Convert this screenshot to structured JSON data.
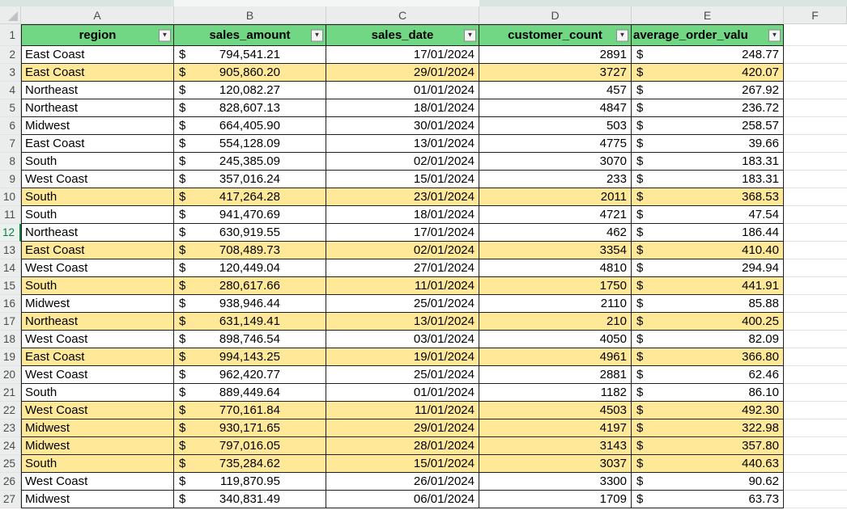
{
  "sheet": {
    "column_letters": [
      "A",
      "B",
      "C",
      "D",
      "E",
      "F"
    ],
    "header_row_number": "1",
    "headers": {
      "region": "region",
      "sales_amount": "sales_amount",
      "sales_date": "sales_date",
      "customer_count": "customer_count",
      "average_order_value": "average_order_valu"
    },
    "filter_icon": "▼",
    "currency_symbol": "$",
    "selected_row": "12",
    "colors": {
      "header_fill": "#71d784",
      "highlight_fill": "#ffe999",
      "selected_accent": "#107c41"
    },
    "rows": [
      {
        "n": "2",
        "region": "East Coast",
        "sales_amount": "794,541.21",
        "sales_date": "17/01/2024",
        "customer_count": "2891",
        "average_order_value": "248.77",
        "highlight": false
      },
      {
        "n": "3",
        "region": "East Coast",
        "sales_amount": "905,860.20",
        "sales_date": "29/01/2024",
        "customer_count": "3727",
        "average_order_value": "420.07",
        "highlight": true
      },
      {
        "n": "4",
        "region": "Northeast",
        "sales_amount": "120,082.27",
        "sales_date": "01/01/2024",
        "customer_count": "457",
        "average_order_value": "267.92",
        "highlight": false
      },
      {
        "n": "5",
        "region": "Northeast",
        "sales_amount": "828,607.13",
        "sales_date": "18/01/2024",
        "customer_count": "4847",
        "average_order_value": "236.72",
        "highlight": false
      },
      {
        "n": "6",
        "region": "Midwest",
        "sales_amount": "664,405.90",
        "sales_date": "30/01/2024",
        "customer_count": "503",
        "average_order_value": "258.57",
        "highlight": false
      },
      {
        "n": "7",
        "region": "East Coast",
        "sales_amount": "554,128.09",
        "sales_date": "13/01/2024",
        "customer_count": "4775",
        "average_order_value": "39.66",
        "highlight": false
      },
      {
        "n": "8",
        "region": "South",
        "sales_amount": "245,385.09",
        "sales_date": "02/01/2024",
        "customer_count": "3070",
        "average_order_value": "183.31",
        "highlight": false
      },
      {
        "n": "9",
        "region": "West Coast",
        "sales_amount": "357,016.24",
        "sales_date": "15/01/2024",
        "customer_count": "233",
        "average_order_value": "183.31",
        "highlight": false
      },
      {
        "n": "10",
        "region": "South",
        "sales_amount": "417,264.28",
        "sales_date": "23/01/2024",
        "customer_count": "2011",
        "average_order_value": "368.53",
        "highlight": true
      },
      {
        "n": "11",
        "region": "South",
        "sales_amount": "941,470.69",
        "sales_date": "18/01/2024",
        "customer_count": "4721",
        "average_order_value": "47.54",
        "highlight": false
      },
      {
        "n": "12",
        "region": "Northeast",
        "sales_amount": "630,919.55",
        "sales_date": "17/01/2024",
        "customer_count": "462",
        "average_order_value": "186.44",
        "highlight": false
      },
      {
        "n": "13",
        "region": "East Coast",
        "sales_amount": "708,489.73",
        "sales_date": "02/01/2024",
        "customer_count": "3354",
        "average_order_value": "410.40",
        "highlight": true
      },
      {
        "n": "14",
        "region": "West Coast",
        "sales_amount": "120,449.04",
        "sales_date": "27/01/2024",
        "customer_count": "4810",
        "average_order_value": "294.94",
        "highlight": false
      },
      {
        "n": "15",
        "region": "South",
        "sales_amount": "280,617.66",
        "sales_date": "11/01/2024",
        "customer_count": "1750",
        "average_order_value": "441.91",
        "highlight": true
      },
      {
        "n": "16",
        "region": "Midwest",
        "sales_amount": "938,946.44",
        "sales_date": "25/01/2024",
        "customer_count": "2110",
        "average_order_value": "85.88",
        "highlight": false
      },
      {
        "n": "17",
        "region": "Northeast",
        "sales_amount": "631,149.41",
        "sales_date": "13/01/2024",
        "customer_count": "210",
        "average_order_value": "400.25",
        "highlight": true
      },
      {
        "n": "18",
        "region": "West Coast",
        "sales_amount": "898,746.54",
        "sales_date": "03/01/2024",
        "customer_count": "4050",
        "average_order_value": "82.09",
        "highlight": false
      },
      {
        "n": "19",
        "region": "East Coast",
        "sales_amount": "994,143.25",
        "sales_date": "19/01/2024",
        "customer_count": "4961",
        "average_order_value": "366.80",
        "highlight": true
      },
      {
        "n": "20",
        "region": "West Coast",
        "sales_amount": "962,420.77",
        "sales_date": "25/01/2024",
        "customer_count": "2881",
        "average_order_value": "62.46",
        "highlight": false
      },
      {
        "n": "21",
        "region": "South",
        "sales_amount": "889,449.64",
        "sales_date": "01/01/2024",
        "customer_count": "1182",
        "average_order_value": "86.10",
        "highlight": false
      },
      {
        "n": "22",
        "region": "West Coast",
        "sales_amount": "770,161.84",
        "sales_date": "11/01/2024",
        "customer_count": "4503",
        "average_order_value": "492.30",
        "highlight": true
      },
      {
        "n": "23",
        "region": "Midwest",
        "sales_amount": "930,171.65",
        "sales_date": "29/01/2024",
        "customer_count": "4197",
        "average_order_value": "322.98",
        "highlight": true
      },
      {
        "n": "24",
        "region": "Midwest",
        "sales_amount": "797,016.05",
        "sales_date": "28/01/2024",
        "customer_count": "3143",
        "average_order_value": "357.80",
        "highlight": true
      },
      {
        "n": "25",
        "region": "South",
        "sales_amount": "735,284.62",
        "sales_date": "15/01/2024",
        "customer_count": "3037",
        "average_order_value": "440.63",
        "highlight": true
      },
      {
        "n": "26",
        "region": "West Coast",
        "sales_amount": "119,870.95",
        "sales_date": "26/01/2024",
        "customer_count": "3300",
        "average_order_value": "90.62",
        "highlight": false
      },
      {
        "n": "27",
        "region": "Midwest",
        "sales_amount": "340,831.49",
        "sales_date": "06/01/2024",
        "customer_count": "1709",
        "average_order_value": "63.73",
        "highlight": false
      }
    ]
  }
}
